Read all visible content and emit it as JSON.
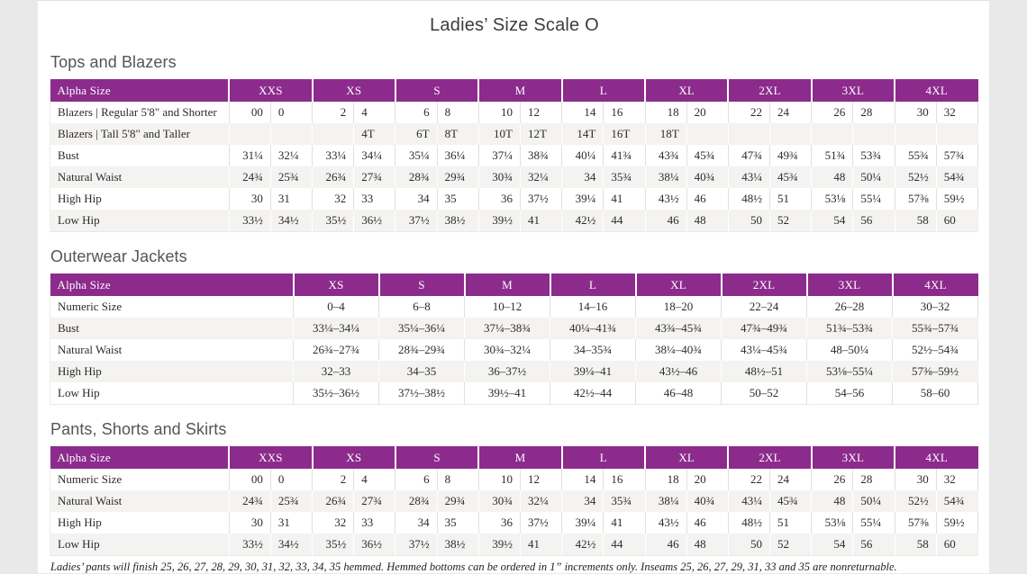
{
  "page": {
    "title": "Ladies’ Size Scale O",
    "footnote": "Ladies’ pants will finish 25, 26, 27, 28, 29, 30, 31, 32, 33, 34, 35 hemmed. Hemmed bottoms can be ordered in 1” increments only. Inseams 25, 26, 27, 29, 31, 33 and 35 are nonreturnable."
  },
  "colors": {
    "header_bg": "#8C2B8C",
    "stripe_bg": "#F4F3F1",
    "line": "#E2E0DC",
    "text": "#2B2B2B",
    "heading": "#555555",
    "title": "#3D3D3D",
    "margin_bg": "#E9E9E9"
  },
  "tables": [
    {
      "id": "tops-and-blazers",
      "section_title": "Tops and Blazers",
      "type": "paired",
      "header_label": "Alpha Size",
      "sizes": [
        "XXS",
        "XS",
        "S",
        "M",
        "L",
        "XL",
        "2XL",
        "3XL",
        "4XL"
      ],
      "rows": [
        {
          "label": "Blazers  |  Regular 5'8\" and Shorter",
          "values": [
            "00",
            "0",
            "2",
            "4",
            "6",
            "8",
            "10",
            "12",
            "14",
            "16",
            "18",
            "20",
            "22",
            "24",
            "26",
            "28",
            "30",
            "32"
          ]
        },
        {
          "label": "Blazers  |  Tall 5'8\" and Taller",
          "values": [
            "",
            "",
            "",
            "4T",
            "6T",
            "8T",
            "10T",
            "12T",
            "14T",
            "16T",
            "18T",
            "",
            "",
            "",
            "",
            "",
            "",
            ""
          ]
        },
        {
          "label": "Bust",
          "values": [
            "31¼",
            "32¼",
            "33¼",
            "34¼",
            "35¼",
            "36¼",
            "37¼",
            "38¾",
            "40¼",
            "41¾",
            "43¾",
            "45¾",
            "47¾",
            "49¾",
            "51¾",
            "53¾",
            "55¾",
            "57¾"
          ]
        },
        {
          "label": "Natural Waist",
          "values": [
            "24¾",
            "25¾",
            "26¾",
            "27¾",
            "28¾",
            "29¾",
            "30¾",
            "32¼",
            "34",
            "35¾",
            "38¼",
            "40¾",
            "43¼",
            "45¾",
            "48",
            "50¼",
            "52½",
            "54¾"
          ]
        },
        {
          "label": "High Hip",
          "values": [
            "30",
            "31",
            "32",
            "33",
            "34",
            "35",
            "36",
            "37½",
            "39¼",
            "41",
            "43½",
            "46",
            "48½",
            "51",
            "53⅛",
            "55¼",
            "57⅜",
            "59½"
          ]
        },
        {
          "label": "Low Hip",
          "values": [
            "33½",
            "34½",
            "35½",
            "36½",
            "37½",
            "38½",
            "39½",
            "41",
            "42½",
            "44",
            "46",
            "48",
            "50",
            "52",
            "54",
            "56",
            "58",
            "60"
          ]
        }
      ]
    },
    {
      "id": "outerwear-jackets",
      "section_title": "Outerwear Jackets",
      "type": "range",
      "header_label": "Alpha Size",
      "sizes": [
        "XS",
        "S",
        "M",
        "L",
        "XL",
        "2XL",
        "3XL",
        "4XL"
      ],
      "rows": [
        {
          "label": "Numeric Size",
          "values": [
            "0–4",
            "6–8",
            "10–12",
            "14–16",
            "18–20",
            "22–24",
            "26–28",
            "30–32"
          ]
        },
        {
          "label": "Bust",
          "values": [
            "33¼–34¼",
            "35¼–36¼",
            "37¼–38¾",
            "40¼–41¾",
            "43¾–45¾",
            "47¾–49¾",
            "51¾–53¾",
            "55¾–57¾"
          ]
        },
        {
          "label": "Natural Waist",
          "values": [
            "26¾–27¾",
            "28¾–29¾",
            "30¾–32¼",
            "34–35¾",
            "38¼–40¾",
            "43¼–45¾",
            "48–50¼",
            "52½–54¾"
          ]
        },
        {
          "label": "High Hip",
          "values": [
            "32–33",
            "34–35",
            "36–37½",
            "39¼–41",
            "43½–46",
            "48½–51",
            "53⅛–55¼",
            "57⅜–59½"
          ]
        },
        {
          "label": "Low Hip",
          "values": [
            "35½–36½",
            "37½–38½",
            "39½–41",
            "42½–44",
            "46–48",
            "50–52",
            "54–56",
            "58–60"
          ]
        }
      ]
    },
    {
      "id": "pants-shorts-skirts",
      "section_title": "Pants, Shorts and Skirts",
      "type": "paired",
      "header_label": "Alpha Size",
      "sizes": [
        "XXS",
        "XS",
        "S",
        "M",
        "L",
        "XL",
        "2XL",
        "3XL",
        "4XL"
      ],
      "rows": [
        {
          "label": "Numeric Size",
          "values": [
            "00",
            "0",
            "2",
            "4",
            "6",
            "8",
            "10",
            "12",
            "14",
            "16",
            "18",
            "20",
            "22",
            "24",
            "26",
            "28",
            "30",
            "32"
          ]
        },
        {
          "label": "Natural Waist",
          "values": [
            "24¾",
            "25¾",
            "26¾",
            "27¾",
            "28¾",
            "29¾",
            "30¾",
            "32¼",
            "34",
            "35¾",
            "38¼",
            "40¾",
            "43¼",
            "45¾",
            "48",
            "50¼",
            "52½",
            "54¾"
          ]
        },
        {
          "label": "High Hip",
          "values": [
            "30",
            "31",
            "32",
            "33",
            "34",
            "35",
            "36",
            "37½",
            "39¼",
            "41",
            "43½",
            "46",
            "48½",
            "51",
            "53⅛",
            "55¼",
            "57⅜",
            "59½"
          ]
        },
        {
          "label": "Low Hip",
          "values": [
            "33½",
            "34½",
            "35½",
            "36½",
            "37½",
            "38½",
            "39½",
            "41",
            "42½",
            "44",
            "46",
            "48",
            "50",
            "52",
            "54",
            "56",
            "58",
            "60"
          ]
        }
      ]
    }
  ]
}
